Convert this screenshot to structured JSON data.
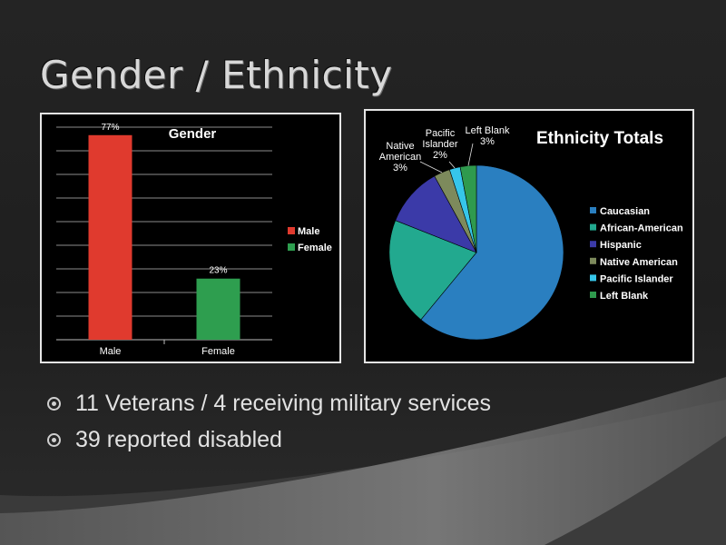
{
  "slide": {
    "title": "Gender / Ethnicity",
    "bullets": [
      "11 Veterans / 4 receiving military services",
      "39 reported disabled"
    ]
  },
  "chart_data": [
    {
      "type": "bar",
      "title": "Gender",
      "categories": [
        "Male",
        "Female"
      ],
      "values": [
        77,
        23
      ],
      "data_labels": [
        "77%",
        "23%"
      ],
      "colors": [
        "#e03a2e",
        "#2e9e4f"
      ],
      "legend": [
        "Male",
        "Female"
      ],
      "legend_position": "right",
      "ylim": [
        0,
        80
      ],
      "grid": true
    },
    {
      "type": "pie",
      "title": "Ethnicity Totals",
      "series": [
        {
          "name": "Caucasian",
          "value": 61,
          "color": "#2a7fc0"
        },
        {
          "name": "African-American",
          "value": 20,
          "color": "#22a98f"
        },
        {
          "name": "Hispanic",
          "value": 11,
          "color": "#3b3aa8"
        },
        {
          "name": "Native American",
          "value": 3,
          "color": "#7d8a5c"
        },
        {
          "name": "Pacific Islander",
          "value": 2,
          "color": "#36c6ea"
        },
        {
          "name": "Left Blank",
          "value": 3,
          "color": "#2f9a4e"
        }
      ],
      "callouts": [
        {
          "category": "Native American",
          "lines": [
            "Native",
            "American",
            "3%"
          ]
        },
        {
          "category": "Pacific Islander",
          "lines": [
            "Pacific",
            "Islander",
            "2%"
          ]
        },
        {
          "category": "Left Blank",
          "lines": [
            "Left Blank",
            "3%"
          ]
        }
      ],
      "legend_position": "right"
    }
  ]
}
